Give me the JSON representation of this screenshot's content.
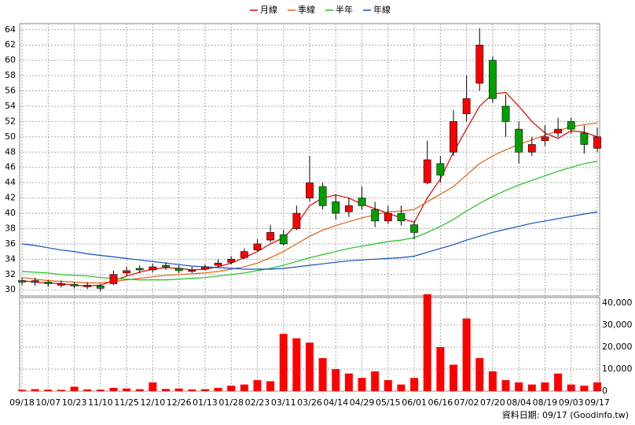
{
  "chart_data": {
    "type": "candlestick",
    "categories": [
      "09/18",
      null,
      "10/07",
      null,
      "10/23",
      null,
      "11/10",
      null,
      "11/25",
      null,
      "12/10",
      null,
      "12/26",
      null,
      "01/13",
      null,
      "01/28",
      null,
      "02/23",
      null,
      "03/11",
      null,
      "03/26",
      null,
      "04/14",
      null,
      "04/29",
      null,
      "05/15",
      null,
      "06/01",
      null,
      "06/16",
      null,
      "07/02",
      null,
      "07/20",
      null,
      "08/04",
      null,
      "08/19",
      null,
      "09/03",
      null,
      "09/17"
    ],
    "open": [
      31.2,
      31,
      31,
      30.6,
      30.7,
      30.4,
      30.5,
      30.8,
      32.2,
      32.8,
      32.6,
      33.2,
      32.8,
      32.4,
      32.7,
      33.2,
      33.6,
      34.2,
      35.2,
      36.5,
      37.2,
      38,
      42,
      43.5,
      41.5,
      40.2,
      42,
      40.5,
      39,
      40,
      38.5,
      44,
      46.5,
      48,
      53,
      57,
      60,
      54,
      51,
      48,
      49.5,
      50.5,
      52,
      50.5,
      48.5
    ],
    "high": [
      31.6,
      31.6,
      31.3,
      31.2,
      31,
      31,
      30.8,
      32.5,
      33,
      33.2,
      33.4,
      33.6,
      33.2,
      33,
      33.3,
      34,
      34.4,
      35.4,
      36.6,
      38.5,
      37.8,
      41,
      47.5,
      44,
      42.5,
      42,
      43.5,
      41.5,
      41,
      41,
      39,
      49.5,
      47.5,
      53.5,
      58,
      64.2,
      60.5,
      55.5,
      52,
      50,
      51.5,
      52.5,
      52.5,
      51.5,
      51.2
    ],
    "low": [
      30.6,
      30.5,
      30.4,
      30.3,
      30.2,
      30.1,
      29.8,
      30.6,
      31.8,
      32.2,
      32.3,
      32.6,
      32.2,
      32.2,
      32.5,
      33,
      33.3,
      34,
      35,
      36.2,
      35.8,
      37.8,
      41.5,
      40.5,
      39.2,
      39.5,
      40.5,
      38.2,
      38.6,
      38.4,
      36.6,
      43.8,
      44,
      47.5,
      52,
      56,
      54.5,
      50,
      46.5,
      47.5,
      48.8,
      50,
      50.4,
      47.8,
      48
    ],
    "close": [
      31,
      31.2,
      30.8,
      30.8,
      30.5,
      30.6,
      30.2,
      32,
      32.5,
      32.6,
      33,
      33,
      32.5,
      32.6,
      33,
      33.5,
      34,
      35,
      36,
      37.5,
      36,
      40,
      44,
      41,
      40,
      41,
      41,
      39,
      40,
      39,
      37.5,
      47,
      45,
      52,
      55,
      62,
      55,
      52,
      48,
      49,
      50,
      51,
      51,
      49,
      50
    ],
    "up_color": "#ff0000",
    "down_color": "#00a000",
    "series": [
      {
        "name": "月線",
        "color": "#e00000",
        "values": [
          31.2,
          31,
          30.9,
          30.8,
          30.6,
          30.5,
          30.6,
          31.2,
          31.8,
          32.3,
          32.7,
          32.9,
          32.8,
          32.6,
          32.7,
          33,
          33.5,
          34.2,
          35,
          36,
          36.8,
          38.5,
          41,
          42,
          42.4,
          42,
          41.2,
          40.6,
          40,
          39.4,
          38.8,
          42,
          44.5,
          48,
          51,
          54,
          55.6,
          55.8,
          54,
          52,
          50.5,
          49.8,
          50.8,
          50.6,
          50
        ]
      },
      {
        "name": "季線",
        "color": "#e06010",
        "values": [
          31.6,
          31.4,
          31.2,
          31.1,
          31,
          30.9,
          30.9,
          31.1,
          31.3,
          31.5,
          31.7,
          31.9,
          32,
          32.1,
          32.2,
          32.4,
          32.7,
          33,
          33.5,
          34.2,
          35,
          36,
          37,
          37.8,
          38.4,
          38.9,
          39.4,
          39.8,
          40.2,
          40.3,
          40.5,
          41.5,
          42.5,
          43.5,
          45,
          46.5,
          47.5,
          48.3,
          49,
          49.6,
          50.2,
          50.8,
          51.3,
          51.6,
          51.8
        ]
      },
      {
        "name": "半年",
        "color": "#20c020",
        "values": [
          32.4,
          32.3,
          32.2,
          32,
          31.9,
          31.8,
          31.6,
          31.5,
          31.4,
          31.3,
          31.3,
          31.3,
          31.4,
          31.5,
          31.6,
          31.8,
          32,
          32.2,
          32.5,
          32.8,
          33.2,
          33.7,
          34.2,
          34.6,
          35,
          35.4,
          35.7,
          36,
          36.3,
          36.5,
          36.8,
          37.5,
          38.3,
          39.2,
          40.3,
          41.3,
          42.2,
          43,
          43.7,
          44.3,
          44.9,
          45.5,
          46,
          46.5,
          46.8
        ]
      },
      {
        "name": "年線",
        "color": "#1050c0",
        "values": [
          36,
          35.8,
          35.5,
          35.2,
          35,
          34.7,
          34.5,
          34.3,
          34.1,
          33.9,
          33.7,
          33.5,
          33.3,
          33.1,
          33,
          32.9,
          32.8,
          32.7,
          32.7,
          32.7,
          32.8,
          33,
          33.2,
          33.4,
          33.6,
          33.8,
          33.9,
          34,
          34.1,
          34.2,
          34.4,
          34.9,
          35.4,
          35.9,
          36.5,
          37,
          37.5,
          37.9,
          38.3,
          38.7,
          39,
          39.3,
          39.6,
          39.9,
          40.2
        ]
      }
    ],
    "volume": {
      "color": "#ff0000",
      "values": [
        600,
        900,
        700,
        600,
        2000,
        800,
        700,
        1500,
        1200,
        900,
        4000,
        1000,
        1200,
        800,
        900,
        1500,
        2500,
        3000,
        5000,
        4500,
        26000,
        24000,
        22000,
        15000,
        10000,
        8000,
        6000,
        9000,
        5000,
        3000,
        6000,
        44000,
        20000,
        12000,
        33000,
        15000,
        9000,
        5000,
        4000,
        3000,
        4000,
        8000,
        3000,
        2500,
        4000
      ]
    },
    "ylim": [
      29.2,
      64.8
    ],
    "yticks": [
      30,
      32,
      34,
      36,
      38,
      40,
      42,
      44,
      46,
      48,
      50,
      52,
      54,
      56,
      58,
      60,
      62,
      64
    ],
    "y2lim": [
      0,
      42500
    ],
    "y2ticks": [
      0,
      {
        "value": 10000,
        "label": "10,000"
      },
      {
        "value": 20000,
        "label": "20,000"
      },
      {
        "value": 30000,
        "label": "30,000"
      },
      {
        "value": 40000,
        "label": "40,000"
      }
    ],
    "grid": true,
    "source": "資料日期: 09/17 (Goodinfo.tw)"
  }
}
